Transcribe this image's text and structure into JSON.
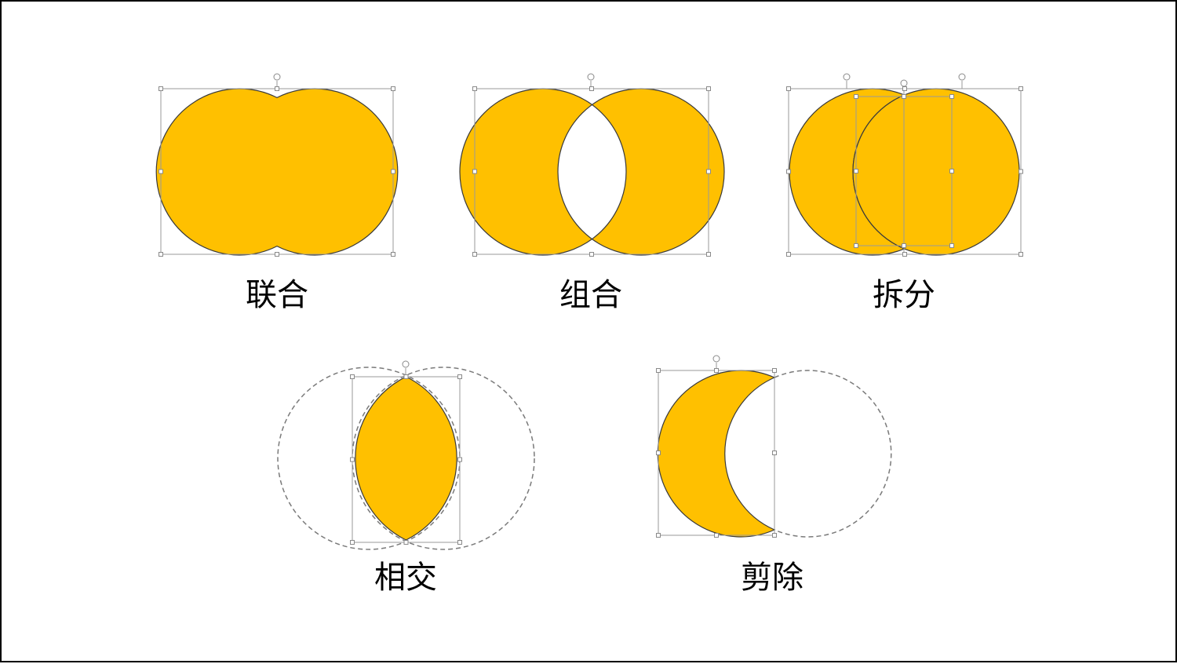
{
  "labels": {
    "union": "联合",
    "combine": "组合",
    "fragment": "拆分",
    "intersect": "相交",
    "subtract": "剪除"
  },
  "colors": {
    "fill": "#FFC000",
    "outline": "#3A3A3A",
    "selection": "#9A9A9A",
    "ghost": "#7A7A7A"
  },
  "icons": [
    "rotate-handle-icon",
    "resize-handle-icon"
  ]
}
